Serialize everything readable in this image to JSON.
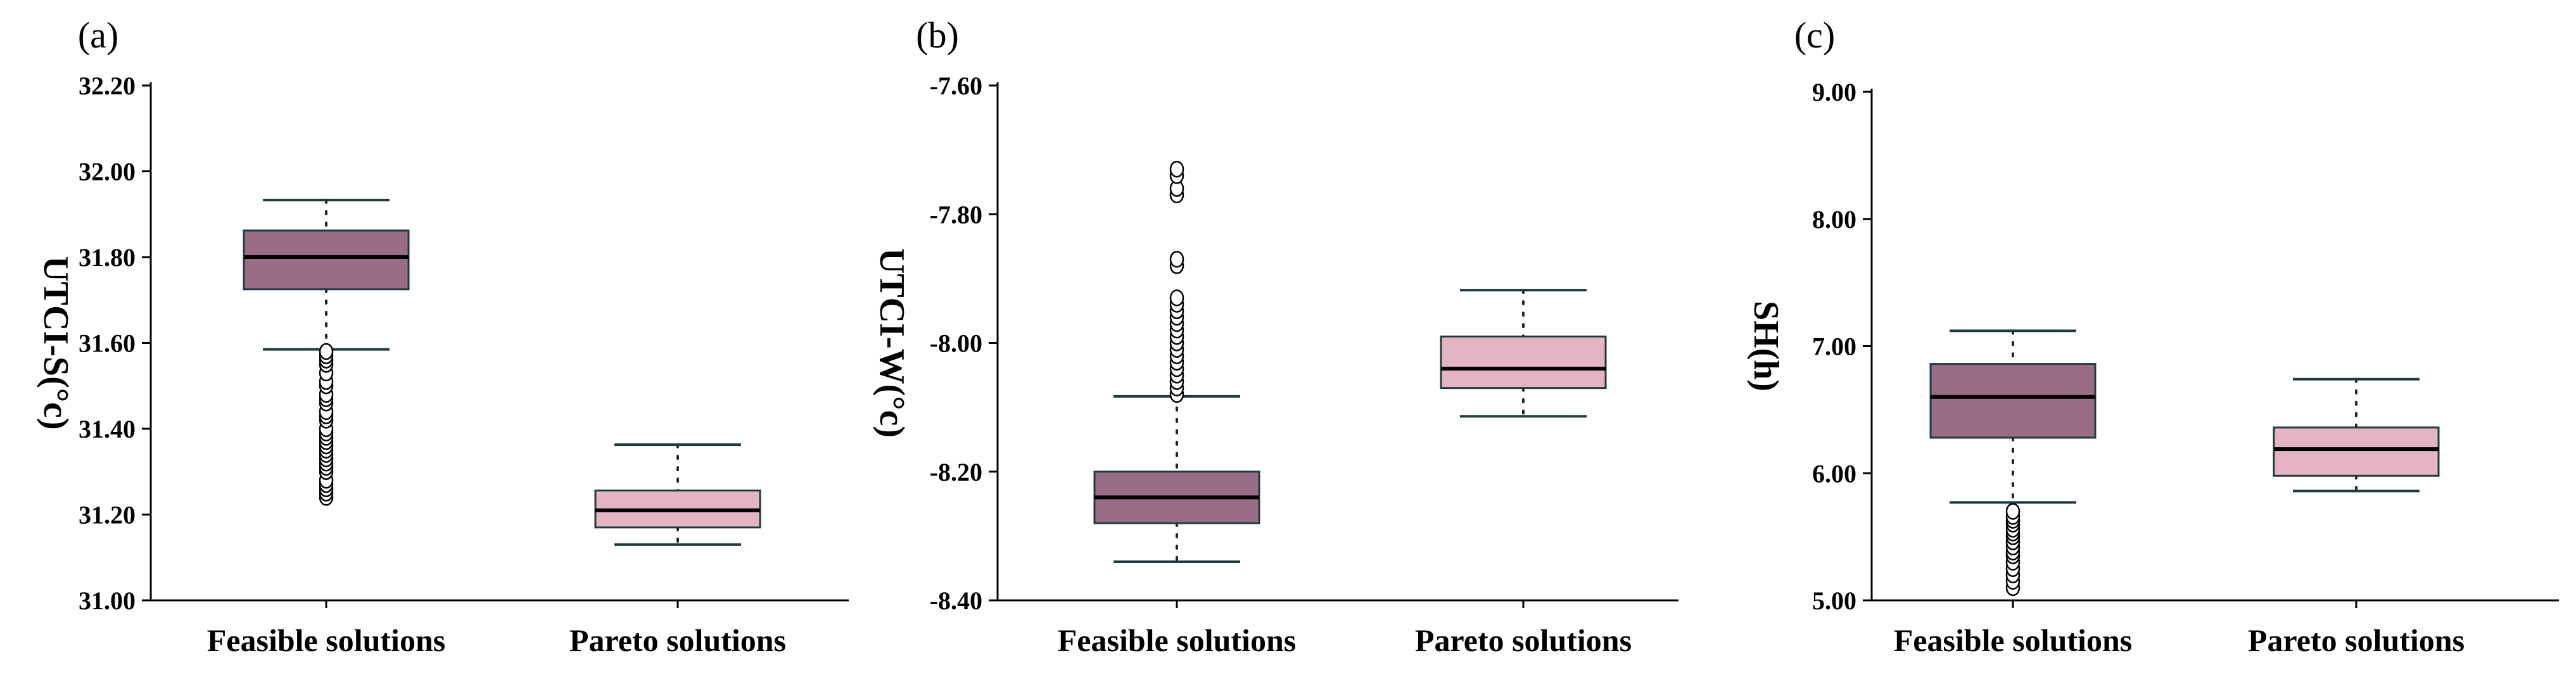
{
  "chart_data": [
    {
      "type": "box",
      "panel": "(a)",
      "ylabel": "UTCI-S(°c)",
      "ylim": [
        31.0,
        32.2
      ],
      "yticks": [
        "31.00",
        "31.20",
        "31.40",
        "31.60",
        "31.80",
        "32.00",
        "32.20"
      ],
      "categories": [
        "Feasible solutions",
        "Pareto solutions"
      ],
      "boxes": [
        {
          "name": "Feasible solutions",
          "color": "#9a6b84",
          "whisker_low": 31.585,
          "q1": 31.725,
          "median": 31.8,
          "q3": 31.862,
          "whisker_high": 31.933,
          "outliers": [
            31.24,
            31.25,
            31.26,
            31.27,
            31.28,
            31.3,
            31.31,
            31.32,
            31.33,
            31.34,
            31.35,
            31.36,
            31.37,
            31.38,
            31.39,
            31.4,
            31.42,
            31.43,
            31.44,
            31.46,
            31.47,
            31.48,
            31.5,
            31.51,
            31.53,
            31.55,
            31.56,
            31.57,
            31.58
          ]
        },
        {
          "name": "Pareto solutions",
          "color": "#e3b5c2",
          "whisker_low": 31.13,
          "q1": 31.17,
          "median": 31.21,
          "q3": 31.256,
          "whisker_high": 31.363,
          "outliers": []
        }
      ]
    },
    {
      "type": "box",
      "panel": "(b)",
      "ylabel": "UTCI-W(°c)",
      "ylim": [
        -8.4,
        -7.6
      ],
      "yticks": [
        "-8.40",
        "-8.20",
        "-8.00",
        "-7.80",
        "-7.60"
      ],
      "categories": [
        "Feasible solutions",
        "Pareto solutions"
      ],
      "boxes": [
        {
          "name": "Feasible solutions",
          "color": "#9a6b84",
          "whisker_low": -8.34,
          "q1": -8.28,
          "median": -8.24,
          "q3": -8.2,
          "whisker_high": -8.083,
          "outliers": [
            -8.08,
            -8.07,
            -8.06,
            -8.05,
            -8.04,
            -8.03,
            -8.02,
            -8.01,
            -8.0,
            -7.99,
            -7.98,
            -7.97,
            -7.96,
            -7.95,
            -7.94,
            -7.93,
            -7.88,
            -7.87,
            -7.77,
            -7.76,
            -7.74,
            -7.73
          ]
        },
        {
          "name": "Pareto solutions",
          "color": "#e3b5c2",
          "whisker_low": -8.114,
          "q1": -8.07,
          "median": -8.04,
          "q3": -7.99,
          "whisker_high": -7.918,
          "outliers": []
        }
      ]
    },
    {
      "type": "box",
      "panel": "(c)",
      "ylabel": "SH(h)",
      "ylim": [
        5.0,
        9.0
      ],
      "yticks": [
        "5.00",
        "6.00",
        "7.00",
        "8.00",
        "9.00"
      ],
      "categories": [
        "Feasible solutions",
        "Pareto solutions"
      ],
      "boxes": [
        {
          "name": "Feasible solutions",
          "color": "#9a6b84",
          "whisker_low": 5.77,
          "q1": 6.28,
          "median": 6.6,
          "q3": 6.86,
          "whisker_high": 7.12,
          "outliers": [
            5.1,
            5.15,
            5.2,
            5.25,
            5.3,
            5.35,
            5.38,
            5.42,
            5.46,
            5.5,
            5.53,
            5.56,
            5.6,
            5.63,
            5.66,
            5.7
          ]
        },
        {
          "name": "Pareto solutions",
          "color": "#e3b5c2",
          "whisker_low": 5.86,
          "q1": 5.98,
          "median": 6.19,
          "q3": 6.36,
          "whisker_high": 6.74,
          "outliers": []
        }
      ]
    }
  ]
}
